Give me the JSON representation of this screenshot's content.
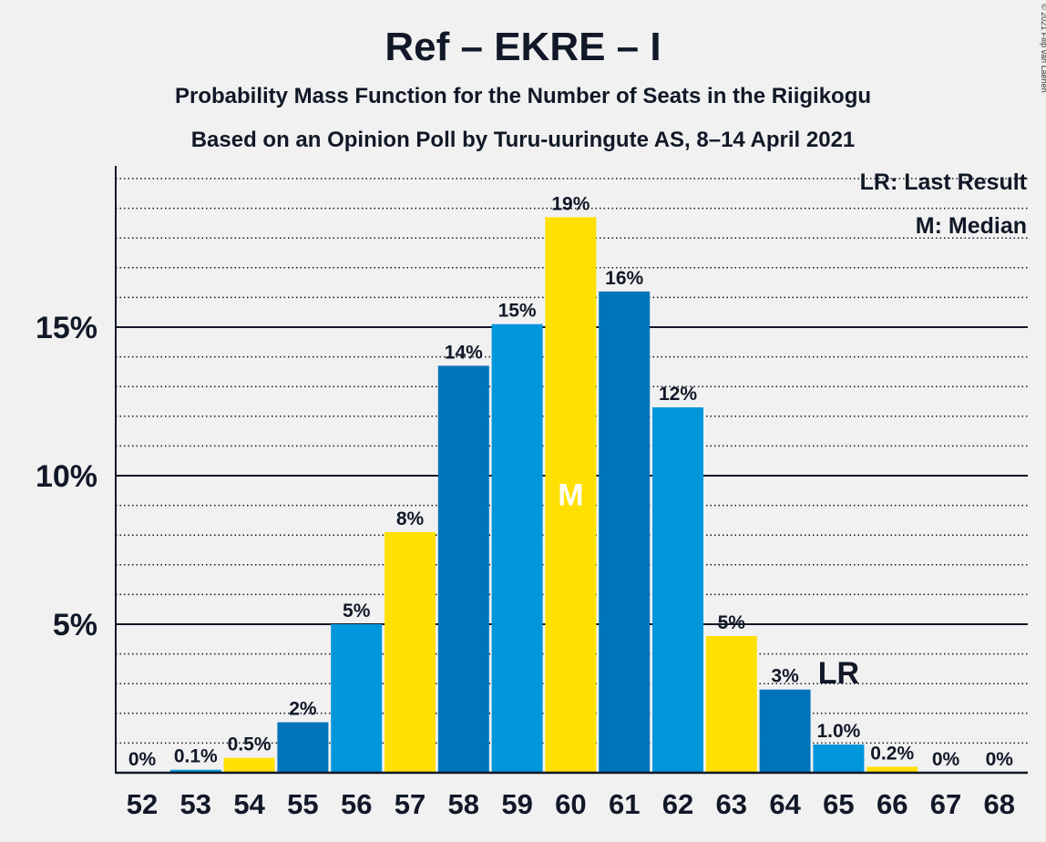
{
  "chart_data": {
    "type": "bar",
    "title": "Ref – EKRE – I",
    "subtitle_1": "Probability Mass Function for the Number of Seats in the Riigikogu",
    "subtitle_2": "Based on an Opinion Poll by Turu-uuringute AS, 8–14 April 2021",
    "copyright": "© 2021 Filip van Laenen",
    "legend": {
      "last_result": "LR: Last Result",
      "median": "M: Median",
      "placement": "top-right"
    },
    "ylim": [
      0,
      20.5
    ],
    "y_major_ticks": [
      5,
      10,
      15
    ],
    "y_tick_labels": [
      "5%",
      "10%",
      "15%"
    ],
    "y_minor_step": 1,
    "grid": true,
    "categories": [
      "52",
      "53",
      "54",
      "55",
      "56",
      "57",
      "58",
      "59",
      "60",
      "61",
      "62",
      "63",
      "64",
      "65",
      "66",
      "67",
      "68"
    ],
    "values": [
      0,
      0.1,
      0.5,
      1.7,
      5.0,
      8.1,
      13.7,
      15.1,
      18.7,
      16.2,
      12.3,
      4.6,
      2.8,
      0.95,
      0.2,
      0,
      0
    ],
    "value_labels": [
      "0%",
      "0.1%",
      "0.5%",
      "2%",
      "5%",
      "8%",
      "14%",
      "15%",
      "19%",
      "16%",
      "12%",
      "5%",
      "3%",
      "1.0%",
      "0.2%",
      "0%",
      "0%"
    ],
    "bar_colors": [
      "#0096dc",
      "#0096dc",
      "#ffe000",
      "#0074bb",
      "#0096dc",
      "#ffe000",
      "#0074bb",
      "#0096dc",
      "#ffe000",
      "#0074bb",
      "#0096dc",
      "#ffe000",
      "#0074bb",
      "#0096dc",
      "#ffe000",
      "#0074bb",
      "#0096dc"
    ],
    "median_seat": "60",
    "median_label": "M",
    "last_result_seat": "65",
    "last_result_label": "LR"
  }
}
